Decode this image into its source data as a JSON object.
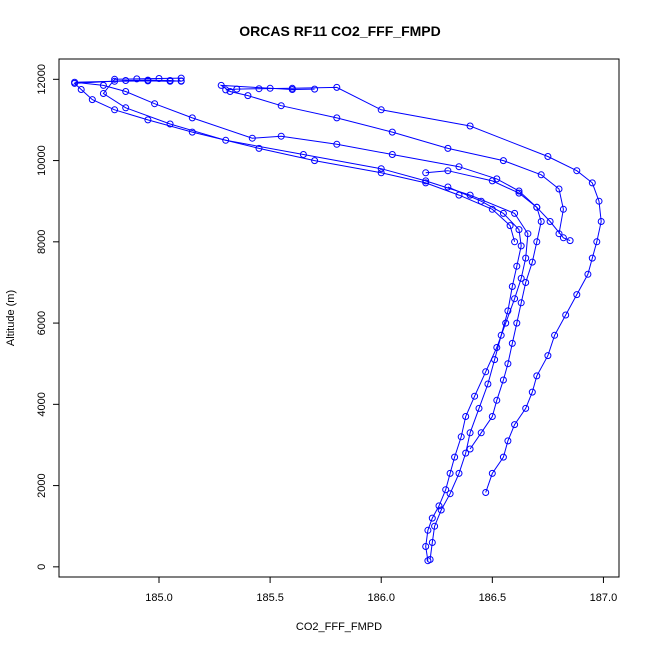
{
  "chart_data": {
    "type": "line",
    "title": "ORCAS RF11 CO2_FFF_FMPD",
    "xlabel": "CO2_FFF_FMPD",
    "ylabel": "Altitude (m)",
    "xlim": [
      184.55,
      187.07
    ],
    "ylim": [
      -250,
      12500
    ],
    "xticks": [
      185.0,
      185.5,
      186.0,
      186.5,
      187.0
    ],
    "xtick_labels": [
      "185.0",
      "185.5",
      "186.0",
      "186.5",
      "187.0"
    ],
    "yticks": [
      0,
      2000,
      4000,
      6000,
      8000,
      10000,
      12000
    ],
    "ytick_labels": [
      "0",
      "2000",
      "4000",
      "6000",
      "8000",
      "10000",
      "12000"
    ],
    "grid": false,
    "color": "#0000ff",
    "marker": "open-circle",
    "series": [
      {
        "points": [
          [
            186.85,
            8030
          ],
          [
            186.82,
            8100
          ],
          [
            186.76,
            8500
          ],
          [
            186.7,
            8850
          ],
          [
            186.62,
            9250
          ],
          [
            186.52,
            9550
          ],
          [
            186.35,
            9850
          ],
          [
            186.05,
            10150
          ],
          [
            185.8,
            10400
          ],
          [
            185.55,
            10600
          ],
          [
            185.42,
            10550
          ],
          [
            185.15,
            11050
          ],
          [
            184.98,
            11400
          ],
          [
            184.85,
            11700
          ],
          [
            184.75,
            11850
          ],
          [
            184.62,
            11930
          ],
          [
            184.8,
            11950
          ],
          [
            184.95,
            11960
          ],
          [
            185.05,
            11950
          ],
          [
            185.1,
            11960
          ]
        ]
      },
      {
        "points": [
          [
            186.6,
            8000
          ],
          [
            186.58,
            8400
          ],
          [
            186.5,
            8800
          ],
          [
            186.35,
            9150
          ],
          [
            186.2,
            9450
          ],
          [
            186.0,
            9700
          ],
          [
            185.7,
            10000
          ],
          [
            185.45,
            10300
          ],
          [
            185.15,
            10700
          ],
          [
            184.95,
            11000
          ],
          [
            184.8,
            11250
          ],
          [
            184.7,
            11500
          ],
          [
            184.65,
            11750
          ],
          [
            184.62,
            11900
          ],
          [
            184.85,
            11970
          ],
          [
            184.95,
            11980
          ],
          [
            185.05,
            11970
          ],
          [
            185.1,
            11950
          ]
        ]
      },
      {
        "points": [
          [
            186.47,
            1830
          ],
          [
            186.5,
            2300
          ],
          [
            186.55,
            2700
          ],
          [
            186.57,
            3100
          ],
          [
            186.6,
            3500
          ],
          [
            186.65,
            3900
          ],
          [
            186.68,
            4300
          ],
          [
            186.7,
            4700
          ],
          [
            186.75,
            5200
          ],
          [
            186.78,
            5700
          ],
          [
            186.83,
            6200
          ],
          [
            186.88,
            6700
          ],
          [
            186.93,
            7200
          ],
          [
            186.95,
            7600
          ],
          [
            186.97,
            8000
          ],
          [
            186.99,
            8500
          ],
          [
            186.98,
            9000
          ],
          [
            186.95,
            9450
          ],
          [
            186.88,
            9750
          ],
          [
            186.75,
            10100
          ],
          [
            186.4,
            10850
          ],
          [
            186.0,
            11250
          ],
          [
            185.8,
            11800
          ],
          [
            185.6,
            11780
          ],
          [
            185.45,
            11770
          ],
          [
            185.35,
            11760
          ],
          [
            185.3,
            11740
          ]
        ]
      },
      {
        "points": [
          [
            186.8,
            8200
          ],
          [
            186.82,
            8800
          ],
          [
            186.8,
            9300
          ],
          [
            186.72,
            9650
          ],
          [
            186.55,
            10000
          ],
          [
            186.3,
            10300
          ],
          [
            186.05,
            10700
          ],
          [
            185.8,
            11050
          ],
          [
            185.55,
            11350
          ],
          [
            185.4,
            11600
          ],
          [
            185.32,
            11700
          ],
          [
            185.28,
            11850
          ],
          [
            185.5,
            11780
          ],
          [
            185.6,
            11750
          ],
          [
            185.7,
            11760
          ]
        ]
      },
      {
        "points": [
          [
            186.21,
            150
          ],
          [
            186.2,
            500
          ],
          [
            186.21,
            900
          ],
          [
            186.23,
            1200
          ],
          [
            186.26,
            1500
          ],
          [
            186.29,
            1900
          ],
          [
            186.31,
            2300
          ],
          [
            186.33,
            2700
          ],
          [
            186.36,
            3200
          ],
          [
            186.38,
            3700
          ],
          [
            186.42,
            4200
          ],
          [
            186.47,
            4800
          ],
          [
            186.52,
            5400
          ],
          [
            186.56,
            6000
          ],
          [
            186.6,
            6600
          ],
          [
            186.63,
            7100
          ],
          [
            186.65,
            7600
          ],
          [
            186.66,
            8200
          ],
          [
            186.6,
            8700
          ],
          [
            186.4,
            9150
          ],
          [
            186.2,
            9500
          ],
          [
            186.0,
            9800
          ],
          [
            185.65,
            10150
          ],
          [
            185.3,
            10500
          ],
          [
            185.05,
            10900
          ],
          [
            184.85,
            11300
          ],
          [
            184.75,
            11650
          ],
          [
            184.8,
            12000
          ],
          [
            184.9,
            12010
          ],
          [
            185.0,
            12020
          ],
          [
            185.1,
            12030
          ]
        ]
      },
      {
        "points": [
          [
            186.4,
            2900
          ],
          [
            186.45,
            3300
          ],
          [
            186.5,
            3700
          ],
          [
            186.52,
            4100
          ],
          [
            186.55,
            4600
          ],
          [
            186.57,
            5000
          ],
          [
            186.59,
            5500
          ],
          [
            186.61,
            6000
          ],
          [
            186.63,
            6500
          ],
          [
            186.65,
            7000
          ],
          [
            186.68,
            7500
          ],
          [
            186.7,
            8000
          ],
          [
            186.72,
            8500
          ],
          [
            186.7,
            8850
          ],
          [
            186.62,
            9200
          ],
          [
            186.5,
            9500
          ],
          [
            186.3,
            9750
          ],
          [
            186.2,
            9700
          ]
        ]
      },
      {
        "points": [
          [
            186.22,
            180
          ],
          [
            186.23,
            600
          ],
          [
            186.24,
            1000
          ],
          [
            186.27,
            1400
          ],
          [
            186.31,
            1800
          ],
          [
            186.35,
            2300
          ],
          [
            186.38,
            2800
          ],
          [
            186.4,
            3300
          ],
          [
            186.44,
            3900
          ],
          [
            186.48,
            4500
          ],
          [
            186.51,
            5100
          ],
          [
            186.54,
            5700
          ],
          [
            186.57,
            6300
          ],
          [
            186.59,
            6900
          ],
          [
            186.61,
            7400
          ],
          [
            186.63,
            7900
          ],
          [
            186.62,
            8300
          ],
          [
            186.55,
            8700
          ],
          [
            186.45,
            9000
          ],
          [
            186.3,
            9350
          ]
        ]
      }
    ]
  }
}
